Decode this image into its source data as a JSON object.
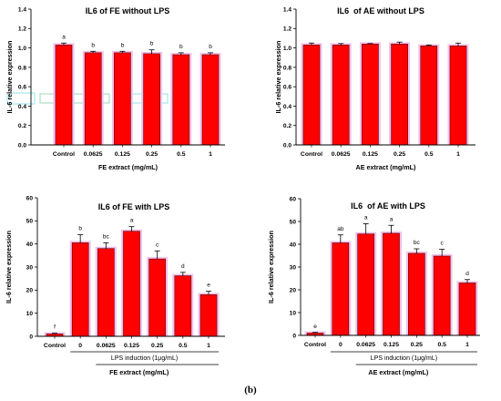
{
  "figure_label": "(b)",
  "chart_data": [
    {
      "type": "bar",
      "title": "IL6 of FE without LPS",
      "ylabel": "IL-6 relative expression",
      "xlabel": "FE extract (mg/mL)",
      "categories": [
        "Control",
        "0.0625",
        "0.125",
        "0.25",
        "0.5",
        "1"
      ],
      "values": [
        1.03,
        0.95,
        0.95,
        0.94,
        0.93,
        0.93
      ],
      "errors": [
        0.02,
        0.015,
        0.015,
        0.04,
        0.02,
        0.02
      ],
      "letters": [
        "a",
        "b",
        "b",
        "b",
        "b",
        "b"
      ],
      "ylim": [
        0,
        1.4
      ],
      "yticks": [
        "0.0",
        "0.2",
        "0.4",
        "0.6",
        "0.8",
        "1.0",
        "1.2",
        "1.4"
      ],
      "bar_color": "#ff0000",
      "glow_color": "#f3c0ea"
    },
    {
      "type": "bar",
      "title": "IL6  of AE without LPS",
      "ylabel": "IL-6 relative expression",
      "xlabel": "AE extract (mg/mL)",
      "categories": [
        "Control",
        "0.0625",
        "0.125",
        "0.25",
        "0.5",
        "1"
      ],
      "values": [
        1.03,
        1.03,
        1.04,
        1.04,
        1.02,
        1.02
      ],
      "errors": [
        0.02,
        0.015,
        0.005,
        0.02,
        0.01,
        0.03
      ],
      "ylim": [
        0,
        1.4
      ],
      "yticks": [
        "0.0",
        "0.2",
        "0.4",
        "0.6",
        "0.8",
        "1.0",
        "1.2",
        "1.4"
      ],
      "bar_color": "#ff0000",
      "glow_color": "#f3c0ea"
    },
    {
      "type": "bar",
      "title": "IL6 of FE with LPS",
      "ylabel": "IL-6 relative expression",
      "group_label": "LPS induction (1μg/mL)",
      "xlabel": "FE extract (mg/mL)",
      "categories": [
        "Control",
        "0",
        "0.0625",
        "0.125",
        "0.25",
        "0.5",
        "1"
      ],
      "values": [
        1.0,
        40.5,
        38.0,
        45.5,
        33.5,
        26.2,
        18.0
      ],
      "errors": [
        0.3,
        3.5,
        2.5,
        2.0,
        3.5,
        1.5,
        1.5
      ],
      "letters": [
        "f",
        "b",
        "bc",
        "a",
        "c",
        "d",
        "e"
      ],
      "ylim": [
        0,
        60
      ],
      "yticks": [
        "0",
        "10",
        "20",
        "30",
        "40",
        "50",
        "60"
      ],
      "bar_color": "#ff0000",
      "glow_color": "#f3c0ea"
    },
    {
      "type": "bar",
      "title": "IL6  of AE with LPS",
      "ylabel": "IL-6 relative expression",
      "group_label": "LPS induction (1μg/mL)",
      "xlabel": "AE extract (mg/mL)",
      "categories": [
        "Control",
        "0",
        "0.0625",
        "0.125",
        "0.25",
        "0.5",
        "1"
      ],
      "values": [
        1.0,
        40.6,
        44.5,
        44.8,
        36.0,
        34.8,
        23.0
      ],
      "errors": [
        0.3,
        3.5,
        4.5,
        3.5,
        2.0,
        3.0,
        1.5
      ],
      "letters": [
        "e",
        "ab",
        "a",
        "a",
        "bc",
        "c",
        "d"
      ],
      "ylim": [
        0,
        60
      ],
      "yticks": [
        "0",
        "10",
        "20",
        "30",
        "40",
        "50",
        "60"
      ],
      "bar_color": "#ff0000",
      "glow_color": "#f3c0ea"
    }
  ]
}
